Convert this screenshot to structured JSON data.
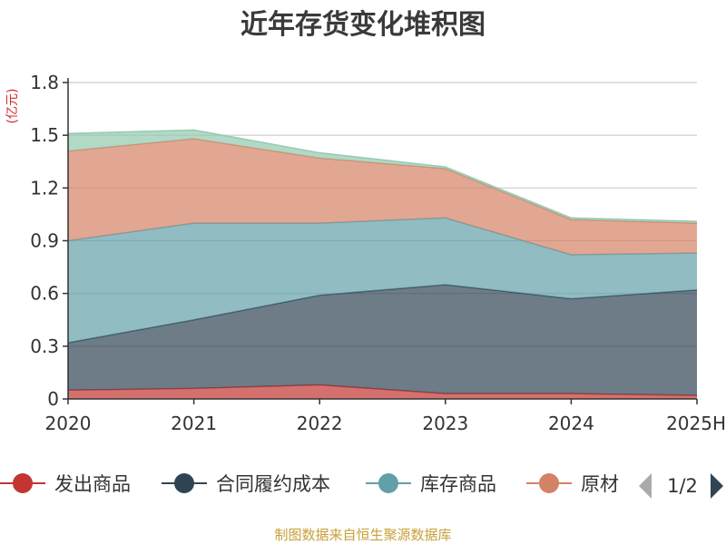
{
  "chart_data": {
    "type": "area",
    "stacked": true,
    "title": "近年存货变化堆积图",
    "unit": "(亿元)",
    "x": [
      "2020",
      "2021",
      "2022",
      "2023",
      "2024",
      "2025H"
    ],
    "ylim": [
      0,
      1.8
    ],
    "yticks": [
      "0",
      "0.3",
      "0.6",
      "0.9",
      "1.2",
      "1.5",
      "1.8"
    ],
    "grid": true,
    "series": [
      {
        "name": "发出商品",
        "color": "#c23531",
        "values": [
          0.05,
          0.06,
          0.08,
          0.03,
          0.03,
          0.02
        ]
      },
      {
        "name": "合同履约成本",
        "color": "#2f4554",
        "values": [
          0.27,
          0.39,
          0.51,
          0.62,
          0.54,
          0.6
        ]
      },
      {
        "name": "库存商品",
        "color": "#61a0a8",
        "values": [
          0.58,
          0.55,
          0.41,
          0.38,
          0.25,
          0.21
        ]
      },
      {
        "name": "原材料",
        "color": "#d48265",
        "values": [
          0.51,
          0.48,
          0.37,
          0.28,
          0.2,
          0.17
        ]
      },
      {
        "name": "",
        "color": "#91c7ae",
        "values": [
          0.1,
          0.05,
          0.03,
          0.01,
          0.01,
          0.01
        ]
      }
    ]
  },
  "legend": {
    "items": [
      "发出商品",
      "合同履约成本",
      "库存商品",
      "原材"
    ],
    "colors": [
      "#c23531",
      "#2f4554",
      "#61a0a8",
      "#d48265"
    ],
    "page": "1/2"
  },
  "source": "制图数据来自恒生聚源数据库"
}
